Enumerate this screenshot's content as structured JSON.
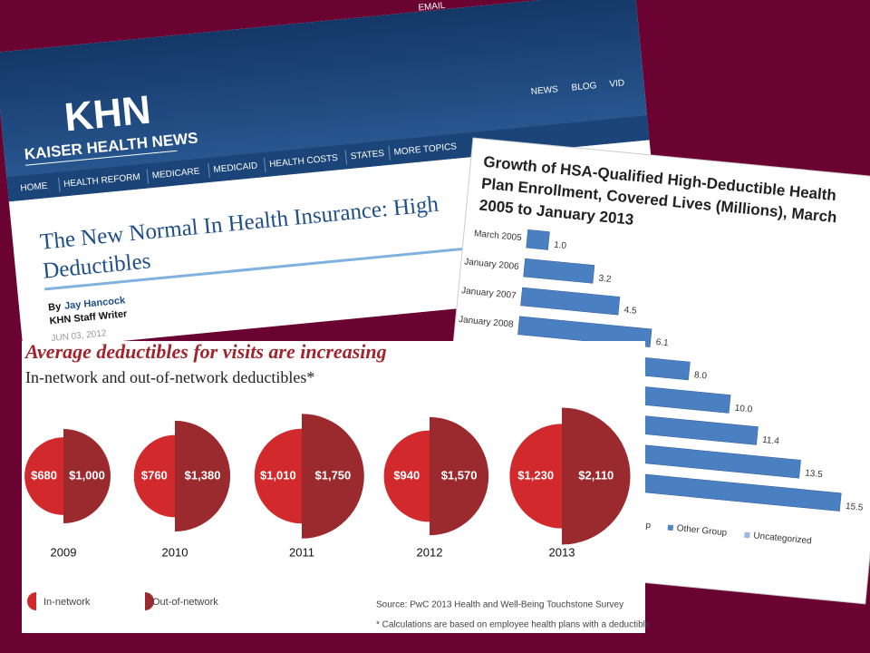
{
  "article": {
    "email": "EMAIL",
    "logo": "KHN",
    "site_name": "KAISER HEALTH NEWS",
    "top_nav": [
      "NEWS",
      "BLOG",
      "VID"
    ],
    "nav": [
      "HOME",
      "HEALTH REFORM",
      "MEDICARE",
      "MEDICAID",
      "HEALTH COSTS",
      "STATES",
      "MORE TOPICS"
    ],
    "headline": [
      "The New Normal In Health Insurance: High",
      "Deductibles"
    ],
    "byline_prefix": "By",
    "author": "Jay Hancock",
    "author_role": "KHN Staff Writer",
    "date": "JUN 03, 2012"
  },
  "chart_data": [
    {
      "type": "bar",
      "orientation": "horizontal",
      "title": [
        "Growth of HSA-Qualified High-Deductible Health",
        "Plan Enrollment, Covered Lives (Millions), March",
        "2005 to January 2013"
      ],
      "categories": [
        "March 2005",
        "January 2006",
        "January 2007",
        "January 2008",
        null,
        null,
        null,
        null,
        null
      ],
      "values": [
        1,
        3.2,
        4.5,
        6.1,
        8,
        10,
        11.4,
        13.5,
        15.5
      ],
      "value_labels": [
        "1.0",
        "3.2",
        "4.5",
        "6.1",
        "8.0",
        "10.0",
        "11.4",
        "13.5",
        "15.5"
      ],
      "color": "#4a7fc1",
      "legend": [
        {
          "name": "Large Group",
          "color": "#2f5f9e"
        },
        {
          "name": "Other Group",
          "color": "#4f86c6"
        },
        {
          "name": "Uncategorized",
          "color": "#9db8de"
        }
      ]
    },
    {
      "type": "half-circle",
      "title": "Average deductibles for visits are increasing",
      "subtitle": "In-network and out-of-network deductibles*",
      "categories": [
        "2009",
        "2010",
        "2011",
        "2012",
        "2013"
      ],
      "series": [
        {
          "name": "In-network",
          "color": "#d2292d",
          "values": [
            680,
            760,
            1010,
            940,
            1230
          ],
          "value_labels": [
            "$680",
            "$760",
            "$1,010",
            "$940",
            "$1,230"
          ]
        },
        {
          "name": "Out-of-network",
          "color": "#9b2a2e",
          "values": [
            1000,
            1380,
            1750,
            1570,
            2110
          ],
          "value_labels": [
            "$1,000",
            "$1,380",
            "$1,750",
            "$1,570",
            "$2,110"
          ]
        }
      ],
      "source": "Source: PwC 2013 Health and Well-Being Touchstone Survey",
      "footnote": "* Calculations are based on employee health plans with a deductible"
    }
  ]
}
